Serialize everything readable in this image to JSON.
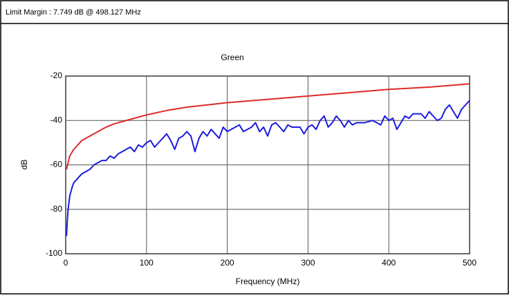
{
  "header": {
    "text": "Limit Margin : 7.749 dB @ 498.127 MHz"
  },
  "chart_data": {
    "type": "line",
    "title": "Green",
    "x_label": "Frequency (MHz)",
    "y_label": "dB",
    "xlim": [
      0,
      500
    ],
    "xticks": [
      0,
      100,
      200,
      300,
      400,
      500
    ],
    "ylim": [
      -100,
      -20
    ],
    "yticks": [
      -100,
      -80,
      -60,
      -40,
      -20
    ],
    "grid": true,
    "series": [
      {
        "color": "#e02828",
        "x": [
          1,
          5,
          10,
          20,
          30,
          40,
          50,
          60,
          70,
          80,
          100,
          125,
          150,
          175,
          200,
          250,
          300,
          350,
          400,
          450,
          500
        ],
        "values": [
          -62,
          -56,
          -53,
          -49,
          -47,
          -45,
          -43,
          -41.5,
          -40.5,
          -39.5,
          -37.5,
          -35.5,
          -34,
          -33,
          -32,
          -30.5,
          -29,
          -27.5,
          -26,
          -25,
          -23.5
        ]
      },
      {
        "color": "#1a1ae0",
        "x": [
          1,
          2,
          3,
          5,
          8,
          10,
          15,
          20,
          25,
          30,
          35,
          40,
          45,
          50,
          55,
          60,
          65,
          70,
          75,
          80,
          85,
          90,
          95,
          100,
          105,
          110,
          115,
          120,
          125,
          130,
          135,
          140,
          145,
          150,
          155,
          160,
          165,
          170,
          175,
          180,
          185,
          190,
          195,
          200,
          210,
          215,
          220,
          225,
          230,
          235,
          240,
          245,
          250,
          255,
          260,
          265,
          270,
          275,
          280,
          290,
          295,
          300,
          305,
          310,
          315,
          320,
          325,
          330,
          335,
          340,
          345,
          350,
          355,
          360,
          370,
          380,
          390,
          395,
          400,
          405,
          410,
          415,
          420,
          425,
          430,
          440,
          445,
          450,
          460,
          465,
          470,
          475,
          480,
          485,
          490,
          495,
          500
        ],
        "values": [
          -92,
          -85,
          -80,
          -74,
          -70,
          -68,
          -66,
          -64,
          -63,
          -62,
          -60,
          -59,
          -58,
          -58,
          -56,
          -57,
          -55,
          -54,
          -53,
          -52,
          -54,
          -51,
          -52,
          -50,
          -49,
          -52,
          -50,
          -48,
          -46,
          -49,
          -53,
          -48,
          -47,
          -45,
          -47,
          -54,
          -48,
          -45,
          -47,
          -44,
          -46,
          -48,
          -43,
          -45,
          -43,
          -42,
          -45,
          -44,
          -43,
          -41,
          -45,
          -43,
          -47,
          -42,
          -41,
          -43,
          -45,
          -42,
          -43,
          -43,
          -46,
          -43,
          -42,
          -44,
          -40,
          -38,
          -43,
          -41,
          -38,
          -40,
          -43,
          -40,
          -42,
          -41,
          -41,
          -40,
          -42,
          -38,
          -40,
          -39,
          -44,
          -41,
          -38,
          -39,
          -37,
          -37,
          -39,
          -36,
          -40,
          -39,
          -35,
          -33,
          -36,
          -39,
          -35,
          -33,
          -31
        ]
      }
    ]
  }
}
